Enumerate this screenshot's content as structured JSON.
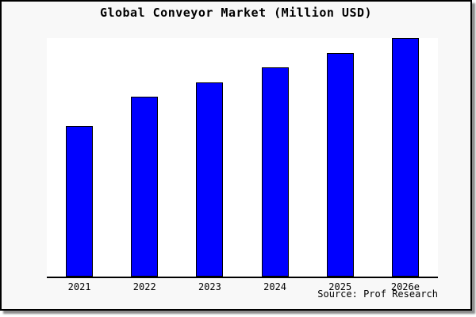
{
  "chart": {
    "title": "Global Conveyor Market (Million USD)",
    "source": "Source: Prof Research"
  },
  "chart_data": {
    "type": "bar",
    "title": "Global Conveyor Market (Million USD)",
    "categories": [
      "2021",
      "2022",
      "2023",
      "2024",
      "2025",
      "2026e"
    ],
    "values_relative_pct": [
      62.7,
      74.9,
      80.9,
      87.1,
      93.1,
      99.3
    ],
    "xlabel": "",
    "ylabel": "",
    "y_axis_labels_visible": false,
    "grid": false,
    "legend": false,
    "annotations": [
      "Source: Prof Research"
    ],
    "bar_color": "#0000ff",
    "bar_border_color": "#000000",
    "axis_color": "#000000",
    "plot_bg": "#ffffff",
    "canvas_bg": "#f8f8f8"
  }
}
